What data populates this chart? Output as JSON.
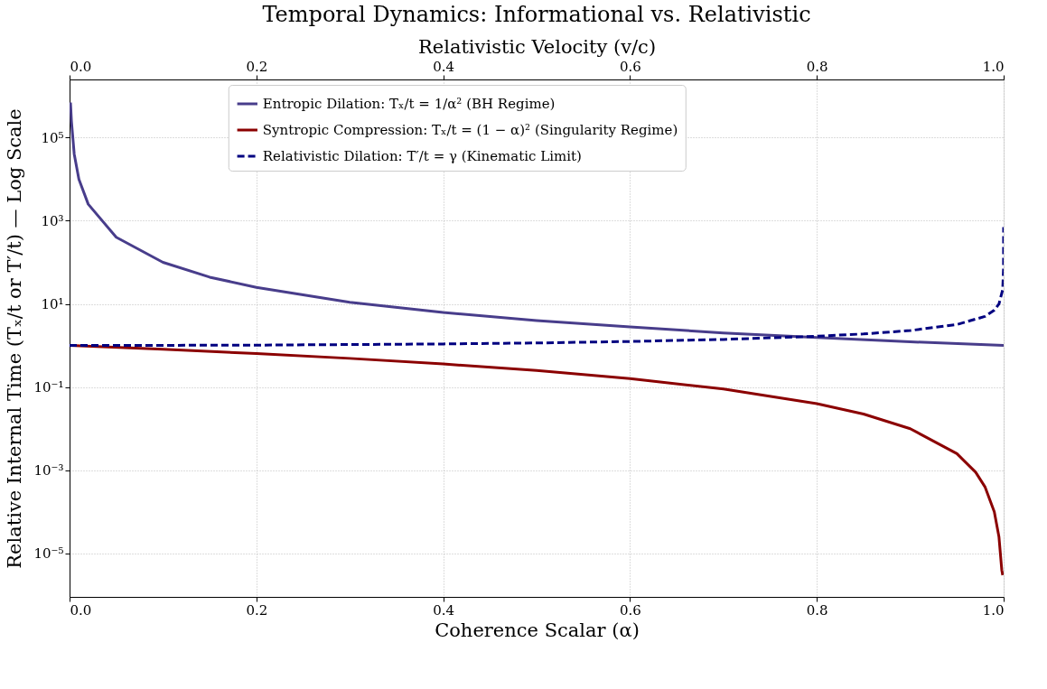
{
  "chart_data": {
    "type": "line",
    "title": "Temporal Dynamics: Informational vs. Relativistic",
    "xlabel": "Coherence Scalar (α)",
    "ylabel": "Relative Internal Time (Tₓ/t or T′/t) — Log Scale",
    "x2label": "Relativistic Velocity (v/c)",
    "xlim": [
      0,
      1
    ],
    "xticks": [
      {
        "value": 0,
        "label": "0.0"
      },
      0.2,
      0.4,
      0.6,
      0.8,
      {
        "value": 1,
        "label": "1.0"
      }
    ],
    "x2lim": [
      0,
      1
    ],
    "x2ticks": [
      {
        "value": 0,
        "label": "0.0"
      },
      0.2,
      0.4,
      0.6,
      0.8,
      {
        "value": 1,
        "label": "1.0"
      }
    ],
    "log": "y",
    "ylim": [
      9e-07,
      2500000.0
    ],
    "yticks": [
      {
        "value": 1e-05,
        "label": "10⁻⁵"
      },
      {
        "value": 0.001,
        "label": "10⁻³"
      },
      {
        "value": 0.1,
        "label": "10⁻¹"
      },
      {
        "value": 10,
        "label": "10¹"
      },
      {
        "value": 1000,
        "label": "10³"
      },
      {
        "value": 100000,
        "label": "10⁵"
      }
    ],
    "grid": true,
    "legend": "top",
    "series": [
      {
        "name": "Entropic Dilation: Tₓ/t = 1/α² (BH Regime)",
        "color": "#483d8b",
        "line_style": "solid",
        "x": [
          0.001,
          0.002,
          0.005,
          0.01,
          0.02,
          0.05,
          0.1,
          0.15,
          0.2,
          0.3,
          0.4,
          0.5,
          0.6,
          0.7,
          0.8,
          0.9,
          1.0
        ],
        "values": [
          700000,
          250000,
          40000,
          10000,
          2500,
          400,
          100,
          44,
          25,
          11,
          6.25,
          4,
          2.8,
          2.0,
          1.56,
          1.23,
          1.0
        ]
      },
      {
        "name": "Syntropic Compression: Tₓ/t = (1 − α)² (Singularity Regime)",
        "color": "#8b0000",
        "line_style": "solid",
        "x": [
          0,
          0.1,
          0.2,
          0.3,
          0.4,
          0.5,
          0.6,
          0.7,
          0.8,
          0.85,
          0.9,
          0.95,
          0.97,
          0.98,
          0.99,
          0.995,
          0.998,
          0.999
        ],
        "values": [
          1,
          0.81,
          0.64,
          0.49,
          0.36,
          0.25,
          0.16,
          0.09,
          0.04,
          0.0225,
          0.01,
          0.0025,
          0.0009,
          0.0004,
          0.0001,
          2.5e-05,
          4e-06,
          3e-06
        ]
      },
      {
        "name": "Relativistic Dilation: T′/t = γ (Kinematic Limit)",
        "color": "#000080",
        "line_style": "dashed",
        "axis": "x2",
        "x": [
          0,
          0.2,
          0.4,
          0.5,
          0.6,
          0.7,
          0.8,
          0.85,
          0.9,
          0.95,
          0.98,
          0.99,
          0.995,
          0.999,
          0.9999,
          0.999999
        ],
        "values": [
          1,
          1.02,
          1.09,
          1.15,
          1.25,
          1.4,
          1.67,
          1.9,
          2.29,
          3.2,
          5.0,
          7.1,
          10,
          22,
          71,
          700
        ]
      }
    ]
  }
}
